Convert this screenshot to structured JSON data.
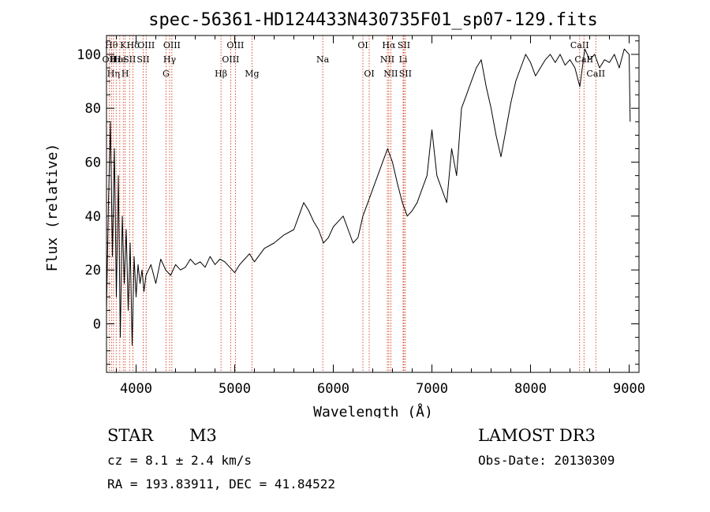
{
  "chart_data": {
    "type": "line",
    "title": "spec-56361-HD124433N430735F01_sp07-129.fits",
    "xlabel": "Wavelength (Å)",
    "ylabel": "Flux (relative)",
    "xlim": [
      3700,
      9100
    ],
    "ylim": [
      -18,
      107
    ],
    "xticks": [
      4000,
      5000,
      6000,
      7000,
      8000,
      9000
    ],
    "yticks": [
      0,
      20,
      40,
      60,
      80,
      100
    ],
    "grid": false,
    "line_color": "#000000",
    "marker_color": "#cc2200",
    "series": [
      {
        "x": [
          3700,
          3720,
          3740,
          3760,
          3780,
          3800,
          3820,
          3840,
          3860,
          3880,
          3900,
          3920,
          3940,
          3960,
          3980,
          4000,
          4020,
          4040,
          4060,
          4080,
          4100,
          4150,
          4200,
          4250,
          4300,
          4350,
          4400,
          4450,
          4500,
          4550,
          4600,
          4650,
          4700,
          4750,
          4800,
          4850,
          4900,
          4950,
          5000,
          5050,
          5100,
          5150,
          5200,
          5300,
          5400,
          5500,
          5600,
          5700,
          5750,
          5800,
          5850,
          5900,
          5950,
          6000,
          6050,
          6100,
          6150,
          6200,
          6250,
          6300,
          6350,
          6400,
          6450,
          6500,
          6550,
          6600,
          6650,
          6700,
          6750,
          6800,
          6850,
          6900,
          6950,
          7000,
          7050,
          7100,
          7150,
          7200,
          7250,
          7300,
          7350,
          7400,
          7450,
          7500,
          7550,
          7600,
          7650,
          7700,
          7750,
          7800,
          7850,
          7900,
          7950,
          8000,
          8050,
          8100,
          8150,
          8200,
          8250,
          8300,
          8350,
          8400,
          8450,
          8500,
          8550,
          8600,
          8650,
          8700,
          8750,
          8800,
          8850,
          8900,
          8950,
          9000,
          9010
        ],
        "y": [
          5,
          45,
          75,
          25,
          65,
          10,
          55,
          -5,
          40,
          15,
          35,
          5,
          30,
          -8,
          25,
          10,
          22,
          15,
          20,
          12,
          18,
          22,
          15,
          24,
          20,
          18,
          22,
          20,
          21,
          24,
          22,
          23,
          21,
          25,
          22,
          24,
          23,
          21,
          19,
          22,
          24,
          26,
          23,
          28,
          30,
          33,
          35,
          45,
          42,
          38,
          35,
          30,
          32,
          36,
          38,
          40,
          35,
          30,
          32,
          40,
          45,
          50,
          55,
          60,
          65,
          60,
          52,
          45,
          40,
          42,
          45,
          50,
          55,
          72,
          55,
          50,
          45,
          65,
          55,
          80,
          85,
          90,
          95,
          98,
          88,
          80,
          70,
          62,
          72,
          82,
          90,
          95,
          100,
          97,
          92,
          95,
          98,
          100,
          97,
          100,
          96,
          98,
          95,
          88,
          102,
          98,
          100,
          95,
          98,
          97,
          100,
          95,
          102,
          100,
          75
        ]
      }
    ],
    "line_markers": [
      {
        "x": 3750,
        "label": "Hθ",
        "row": 1
      },
      {
        "x": 3727,
        "label": "OII",
        "row": 2
      },
      {
        "x": 3771,
        "label": "Hη",
        "row": 3
      },
      {
        "x": 3798,
        "label": "Hε",
        "row": 2
      },
      {
        "x": 3835,
        "label": "He",
        "row": 2
      },
      {
        "x": 3870,
        "label": "K",
        "row": 1
      },
      {
        "x": 3889,
        "label": "H",
        "row": 3
      },
      {
        "x": 3934,
        "label": "SII",
        "row": 2
      },
      {
        "x": 3969,
        "label": "Hδ",
        "row": 1
      },
      {
        "x": 4072,
        "label": "SII",
        "row": 2
      },
      {
        "x": 4102,
        "label": "OIII",
        "row": 1
      },
      {
        "x": 4303,
        "label": "G",
        "row": 3
      },
      {
        "x": 4340,
        "label": "Hγ",
        "row": 2
      },
      {
        "x": 4363,
        "label": "OIII",
        "row": 1
      },
      {
        "x": 4861,
        "label": "Hβ",
        "row": 3
      },
      {
        "x": 4959,
        "label": "OIII",
        "row": 2
      },
      {
        "x": 5007,
        "label": "OIII",
        "row": 1
      },
      {
        "x": 5175,
        "label": "Mg",
        "row": 3
      },
      {
        "x": 5893,
        "label": "Na",
        "row": 2
      },
      {
        "x": 6300,
        "label": "OI",
        "row": 1
      },
      {
        "x": 6364,
        "label": "OI",
        "row": 3
      },
      {
        "x": 6548,
        "label": "NII",
        "row": 2
      },
      {
        "x": 6563,
        "label": "Hα",
        "row": 1
      },
      {
        "x": 6583,
        "label": "NII",
        "row": 3
      },
      {
        "x": 6708,
        "label": "Li",
        "row": 2
      },
      {
        "x": 6716,
        "label": "SII",
        "row": 1
      },
      {
        "x": 6731,
        "label": "SII",
        "row": 3
      },
      {
        "x": 8498,
        "label": "CaII",
        "row": 1
      },
      {
        "x": 8542,
        "label": "CaII",
        "row": 2
      },
      {
        "x": 8662,
        "label": "CaII",
        "row": 3
      }
    ]
  },
  "info": {
    "object_class": "STAR",
    "subclass": "M3",
    "survey": "LAMOST DR3",
    "cz": "cz = 8.1 ± 2.4 km/s",
    "obs_date": "Obs-Date: 20130309",
    "coords": "RA = 193.83911, DEC =  41.84522"
  }
}
